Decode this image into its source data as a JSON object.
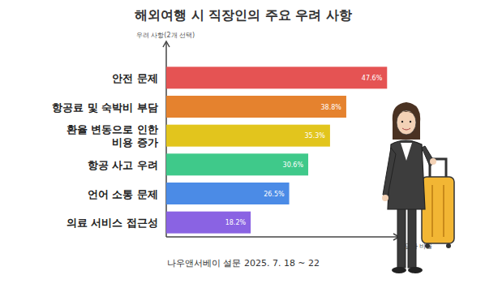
{
  "chart_data": {
    "type": "bar",
    "orientation": "horizontal",
    "title": "해외여행 시 직장인의 주요 우려 사항",
    "y_label": "우려 사항(2개 선택)",
    "x_label": "응답자 비율",
    "source": "나우앤서베이 설문 2025. 7. 18 ~ 22",
    "categories": [
      "안전 문제",
      "항공료 및 숙박비 부담",
      "환율 변동으로 인한\n비용 증가",
      "항공 사고 우려",
      "언어 소통 문제",
      "의료 서비스 접근성"
    ],
    "values": [
      47.6,
      38.8,
      35.3,
      30.6,
      26.5,
      18.2
    ],
    "value_labels": [
      "47.6%",
      "38.8%",
      "35.3%",
      "30.6%",
      "26.5%",
      "18.2%"
    ],
    "colors": [
      "#e55353",
      "#e5822e",
      "#e2c51d",
      "#3fc98a",
      "#4b8be6",
      "#8a63e3"
    ],
    "xlim": [
      0,
      50
    ],
    "grid": false,
    "tick_labels": false,
    "data_labels": true
  }
}
